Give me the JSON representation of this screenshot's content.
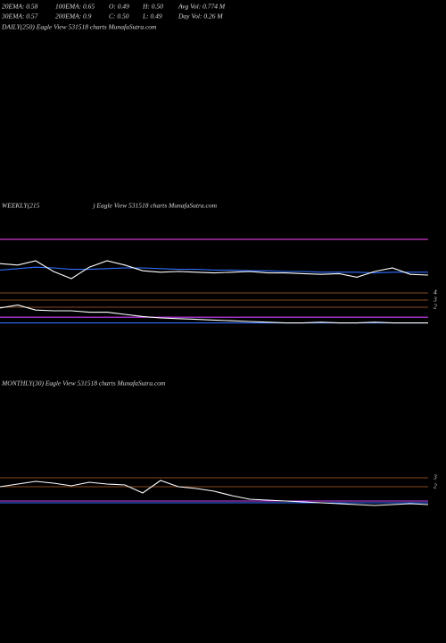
{
  "header": {
    "stats": [
      [
        "20EMA: 0.58",
        "100EMA: 0.65",
        "O: 0.49",
        "H: 0.50",
        "Avg Vol: 0.774  M"
      ],
      [
        "30EMA: 0.57",
        "200EMA: 0.9",
        "C: 0.50",
        "L: 0.49",
        "Day Vol: 0.26  M"
      ]
    ],
    "daily_title": "DAILY(250) Eagle  View  531518  charts MunafaSutra.com"
  },
  "chart_data": [
    {
      "type": "line",
      "title": "WEEKLY(215",
      "title_rest": ") Eagle  View  531518  charts MunafaSutra.com",
      "ylim": [
        -1.25,
        12.25
      ],
      "yticks": [
        2,
        3,
        4
      ],
      "grid": true,
      "series": [
        {
          "color": "#ff44ff",
          "values": [
            11.5,
            11.5,
            11.5,
            11.5,
            11.5,
            11.5,
            11.5,
            11.5,
            11.5,
            11.5,
            11.5,
            11.5,
            11.5,
            11.5,
            11.5,
            11.5,
            11.5,
            11.5,
            11.5,
            11.5,
            11.5,
            11.5,
            11.5,
            11.5,
            11.5
          ]
        },
        {
          "color": "#2f6fff",
          "values": [
            7.2,
            7.4,
            7.6,
            7.5,
            7.3,
            7.3,
            7.4,
            7.5,
            7.5,
            7.4,
            7.3,
            7.3,
            7.2,
            7.2,
            7.1,
            7.1,
            7.0,
            7.0,
            6.9,
            6.9,
            6.9,
            6.8,
            6.9,
            6.9,
            6.9
          ]
        },
        {
          "color": "#ffffff",
          "values": [
            8.1,
            7.9,
            8.5,
            7.0,
            6.0,
            7.6,
            8.5,
            7.9,
            7.1,
            6.9,
            7.0,
            6.9,
            6.8,
            6.9,
            7.0,
            6.8,
            6.8,
            6.7,
            6.6,
            6.7,
            6.2,
            7.0,
            7.5,
            6.6,
            6.5
          ]
        },
        {
          "color": "#cc44ff",
          "values": [
            0.6,
            0.6,
            0.6,
            0.6,
            0.6,
            0.6,
            0.6,
            0.6,
            0.6,
            0.6,
            0.6,
            0.6,
            0.6,
            0.6,
            0.6,
            0.6,
            0.6,
            0.6,
            0.6,
            0.6,
            0.6,
            0.6,
            0.6,
            0.6,
            0.6
          ]
        },
        {
          "color": "#2f6fff",
          "values": [
            -0.2,
            -0.2,
            -0.2,
            -0.2,
            -0.2,
            -0.2,
            -0.2,
            -0.2,
            -0.2,
            -0.2,
            -0.2,
            -0.2,
            -0.2,
            -0.2,
            -0.2,
            -0.2,
            -0.2,
            -0.2,
            -0.2,
            -0.2,
            -0.2,
            -0.2,
            -0.2,
            -0.2,
            -0.2
          ]
        },
        {
          "color": "#ffffff",
          "values": [
            1.9,
            2.3,
            1.6,
            1.5,
            1.5,
            1.3,
            1.3,
            1.0,
            0.7,
            0.5,
            0.4,
            0.3,
            0.2,
            0.1,
            0.0,
            -0.1,
            -0.2,
            -0.2,
            -0.1,
            -0.2,
            -0.2,
            -0.1,
            -0.2,
            -0.2,
            -0.2
          ]
        }
      ]
    },
    {
      "type": "line",
      "title": "MONTHLY(30) Eagle  View  531518  charts MunafaSutra.com",
      "ylim": [
        -0.5,
        4
      ],
      "yticks": [
        2,
        3
      ],
      "grid": true,
      "series": [
        {
          "color": "#cc44ff",
          "values": [
            0.4,
            0.4,
            0.4,
            0.4,
            0.4,
            0.4,
            0.4,
            0.4,
            0.4,
            0.4,
            0.4,
            0.4,
            0.4,
            0.4,
            0.4,
            0.4,
            0.4,
            0.4,
            0.4,
            0.4,
            0.4,
            0.4,
            0.4,
            0.4,
            0.4
          ]
        },
        {
          "color": "#2f6fff",
          "values": [
            0.2,
            0.2,
            0.2,
            0.2,
            0.2,
            0.2,
            0.2,
            0.2,
            0.2,
            0.2,
            0.2,
            0.2,
            0.2,
            0.2,
            0.2,
            0.2,
            0.2,
            0.2,
            0.2,
            0.2,
            0.2,
            0.2,
            0.2,
            0.2,
            0.2
          ]
        },
        {
          "color": "#ffffff",
          "values": [
            2.0,
            2.3,
            2.6,
            2.4,
            2.1,
            2.5,
            2.3,
            2.2,
            1.3,
            2.7,
            2.0,
            1.8,
            1.5,
            1.0,
            0.6,
            0.5,
            0.4,
            0.3,
            0.2,
            0.1,
            0.0,
            -0.1,
            0.0,
            0.1,
            0.0
          ]
        }
      ]
    }
  ]
}
